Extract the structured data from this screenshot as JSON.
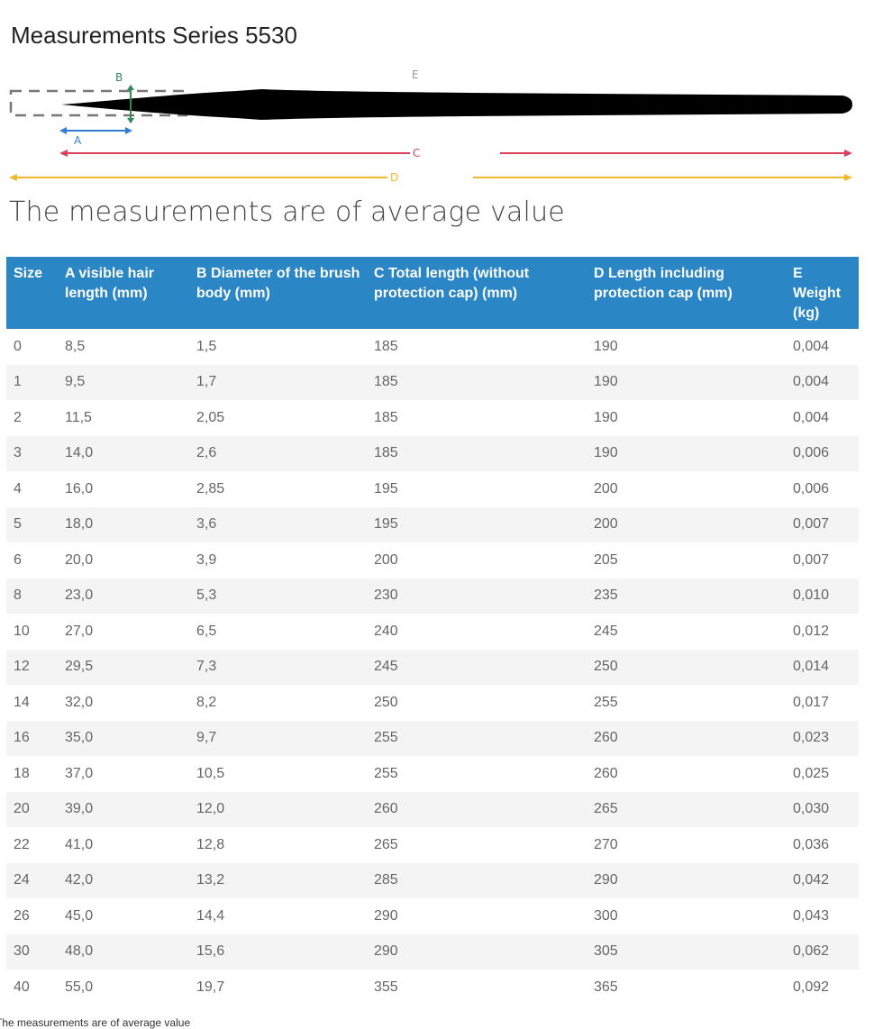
{
  "header": {
    "title": "Measurements Series 5530"
  },
  "diagram": {
    "labels": {
      "a": "A",
      "b": "B",
      "c": "C",
      "d": "D",
      "e": "E"
    }
  },
  "subtitle": "The measurements are of average value",
  "table": {
    "columns": [
      "Size",
      "A visible hair length (mm)",
      "B Diameter of the brush body (mm)",
      "C Total length (without protection cap) (mm)",
      "D Length including protection cap (mm)",
      "E Weight (kg)"
    ],
    "rows": [
      [
        "0",
        "8,5",
        "1,5",
        "185",
        "190",
        "0,004"
      ],
      [
        "1",
        "9,5",
        "1,7",
        "185",
        "190",
        "0,004"
      ],
      [
        "2",
        "11,5",
        "2,05",
        "185",
        "190",
        "0,004"
      ],
      [
        "3",
        "14,0",
        "2,6",
        "185",
        "190",
        "0,006"
      ],
      [
        "4",
        "16,0",
        "2,85",
        "195",
        "200",
        "0,006"
      ],
      [
        "5",
        "18,0",
        "3,6",
        "195",
        "200",
        "0,007"
      ],
      [
        "6",
        "20,0",
        "3,9",
        "200",
        "205",
        "0,007"
      ],
      [
        "8",
        "23,0",
        "5,3",
        "230",
        "235",
        "0,010"
      ],
      [
        "10",
        "27,0",
        "6,5",
        "240",
        "245",
        "0,012"
      ],
      [
        "12",
        "29,5",
        "7,3",
        "245",
        "250",
        "0,014"
      ],
      [
        "14",
        "32,0",
        "8,2",
        "250",
        "255",
        "0,017"
      ],
      [
        "16",
        "35,0",
        "9,7",
        "255",
        "260",
        "0,023"
      ],
      [
        "18",
        "37,0",
        "10,5",
        "255",
        "260",
        "0,025"
      ],
      [
        "20",
        "39,0",
        "12,0",
        "260",
        "265",
        "0,030"
      ],
      [
        "22",
        "41,0",
        "12,8",
        "265",
        "270",
        "0,036"
      ],
      [
        "24",
        "42,0",
        "13,2",
        "285",
        "290",
        "0,042"
      ],
      [
        "26",
        "45,0",
        "14,4",
        "290",
        "300",
        "0,043"
      ],
      [
        "30",
        "48,0",
        "15,6",
        "290",
        "305",
        "0,062"
      ],
      [
        "40",
        "55,0",
        "19,7",
        "355",
        "365",
        "0,092"
      ]
    ]
  },
  "footnote": "The measurements are of average value"
}
